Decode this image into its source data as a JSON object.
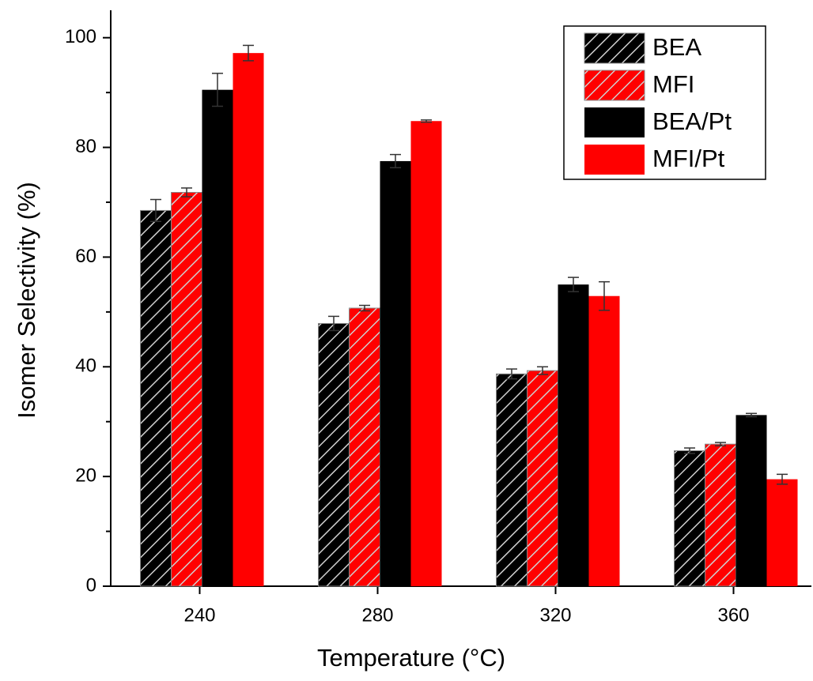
{
  "chart_data": {
    "type": "bar",
    "xlabel": "Temperature (°C)",
    "ylabel": "Isomer Selectivity (%)",
    "categories": [
      "240",
      "280",
      "320",
      "360"
    ],
    "series": [
      {
        "name": "BEA",
        "color": "#000000",
        "pattern": "hatch",
        "values": [
          68.5,
          47.9,
          38.7,
          24.7
        ],
        "errors": [
          2.0,
          1.3,
          0.9,
          0.5
        ]
      },
      {
        "name": "MFI",
        "color": "#ff0000",
        "pattern": "hatch",
        "values": [
          71.8,
          50.7,
          39.3,
          25.9
        ],
        "errors": [
          0.8,
          0.5,
          0.7,
          0.3
        ]
      },
      {
        "name": "BEA/Pt",
        "color": "#000000",
        "pattern": "solid",
        "values": [
          90.5,
          77.5,
          55.0,
          31.2
        ],
        "errors": [
          3.0,
          1.2,
          1.3,
          0.3
        ]
      },
      {
        "name": "MFI/Pt",
        "color": "#ff0000",
        "pattern": "solid",
        "values": [
          97.2,
          84.8,
          52.9,
          19.5
        ],
        "errors": [
          1.4,
          0.2,
          2.6,
          0.9
        ]
      }
    ],
    "ylim": [
      0,
      105
    ],
    "yticks": [
      0,
      20,
      40,
      60,
      80,
      100
    ],
    "yminorticks": [
      10,
      30,
      50,
      70,
      90
    ],
    "legend": "upper right"
  }
}
